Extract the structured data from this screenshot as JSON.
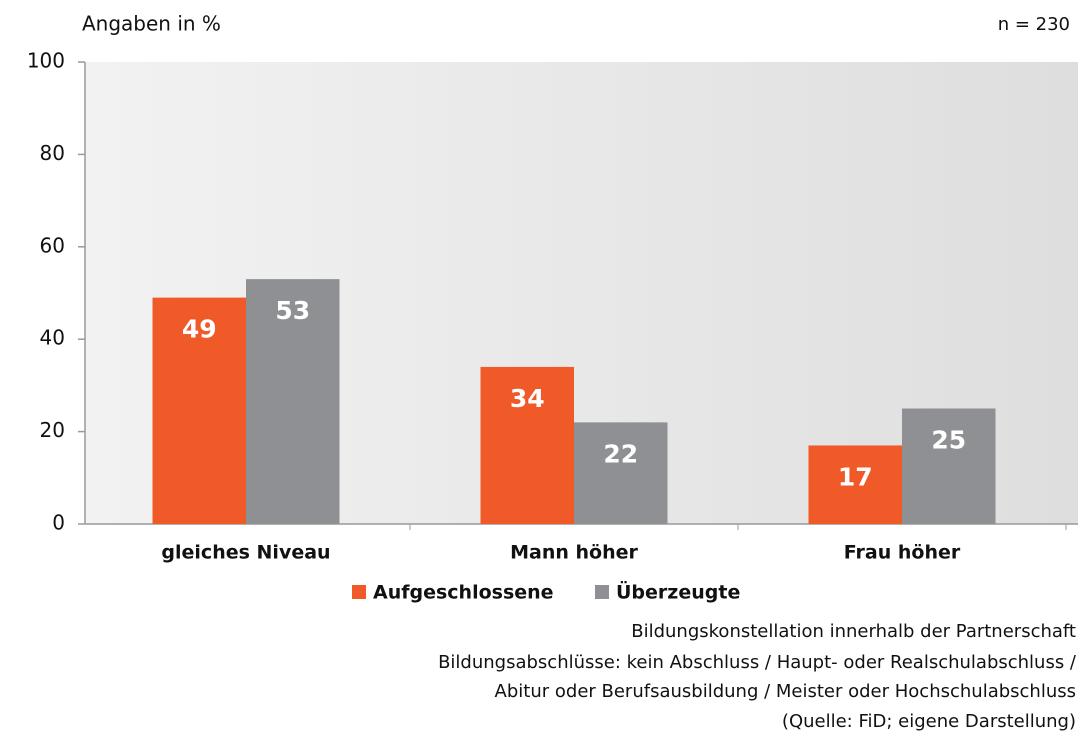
{
  "chart_data": {
    "type": "bar",
    "subtitle": "Angaben in %",
    "annotation": "n = 230",
    "categories": [
      "gleiches Niveau",
      "Mann höher",
      "Frau höher"
    ],
    "series": [
      {
        "name": "Aufgeschlossene",
        "color": "#f05a28",
        "values": [
          49,
          34,
          17
        ]
      },
      {
        "name": "Überzeugte",
        "color": "#8f9093",
        "values": [
          53,
          22,
          25
        ]
      }
    ],
    "ylim": [
      0,
      100
    ],
    "yticks": [
      0,
      20,
      40,
      60,
      80,
      100
    ],
    "notes": [
      "Bildungskonstellation innerhalb der Partnerschaft",
      "Bildungsabschlüsse: kein Abschluss / Haupt- oder Realschulabschluss /",
      "Abitur oder Berufsausbildung / Meister oder Hochschulabschluss",
      "(Quelle: FiD; eigene Darstellung)"
    ]
  }
}
